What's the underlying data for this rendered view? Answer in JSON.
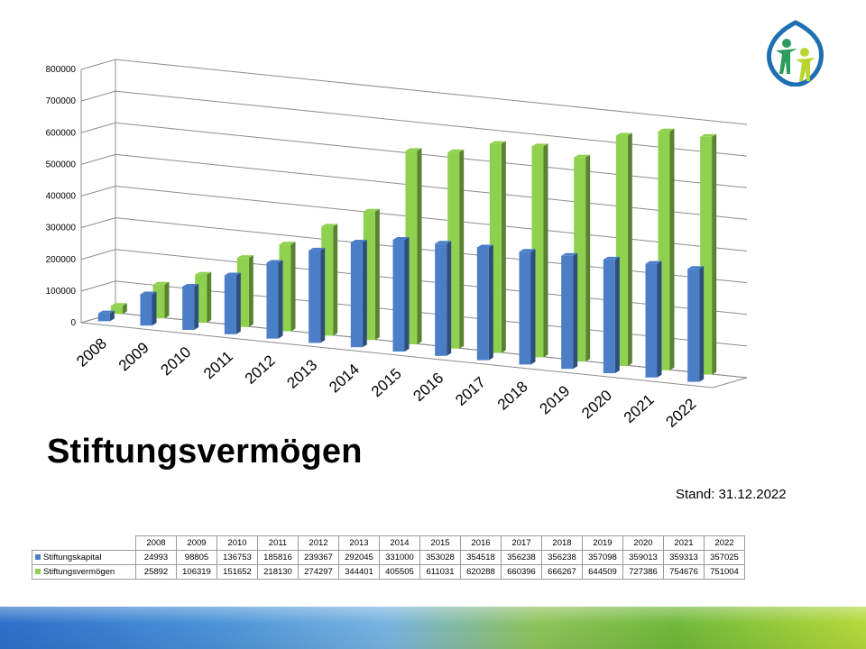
{
  "slide": {
    "title": "Stiftungsvermögen",
    "stand": "Stand: 31.12.2022"
  },
  "colors": {
    "kapital": "#4a7ec7",
    "vermoegen": "#8fd14f"
  },
  "chart_data": {
    "type": "bar",
    "style": "3d-clustered-column",
    "categories": [
      "2008",
      "2009",
      "2010",
      "2011",
      "2012",
      "2013",
      "2014",
      "2015",
      "2016",
      "2017",
      "2018",
      "2019",
      "2020",
      "2021",
      "2022"
    ],
    "yticks": [
      "0",
      "100000",
      "200000",
      "300000",
      "400000",
      "500000",
      "600000",
      "700000",
      "800000"
    ],
    "ylim": [
      0,
      800000
    ],
    "grid": true,
    "series": [
      {
        "name": "Stiftungskapital",
        "color": "#4a7ec7",
        "values": [
          24993,
          98805,
          136753,
          185816,
          239367,
          292045,
          331000,
          353028,
          354518,
          356238,
          356238,
          357098,
          359013,
          359313,
          357025
        ]
      },
      {
        "name": "Stiftungsvermögen",
        "color": "#8fd14f",
        "values": [
          25892,
          106319,
          151652,
          218130,
          274297,
          344401,
          405505,
          611031,
          620288,
          660396,
          666267,
          644509,
          727386,
          754676,
          751004
        ]
      }
    ]
  },
  "table": {
    "years": [
      "2008",
      "2009",
      "2010",
      "2011",
      "2012",
      "2013",
      "2014",
      "2015",
      "2016",
      "2017",
      "2018",
      "2019",
      "2020",
      "2021",
      "2022"
    ],
    "rows": [
      {
        "label": "Stiftungskapital",
        "values": [
          "24993",
          "98805",
          "136753",
          "185816",
          "239367",
          "292045",
          "331000",
          "353028",
          "354518",
          "356238",
          "356238",
          "357098",
          "359013",
          "359313",
          "357025"
        ]
      },
      {
        "label": "Stiftungsvermögen",
        "values": [
          "25892",
          "106319",
          "151652",
          "218130",
          "274297",
          "344401",
          "405505",
          "611031",
          "620288",
          "660396",
          "666267",
          "644509",
          "727386",
          "754676",
          "751004"
        ]
      }
    ]
  }
}
